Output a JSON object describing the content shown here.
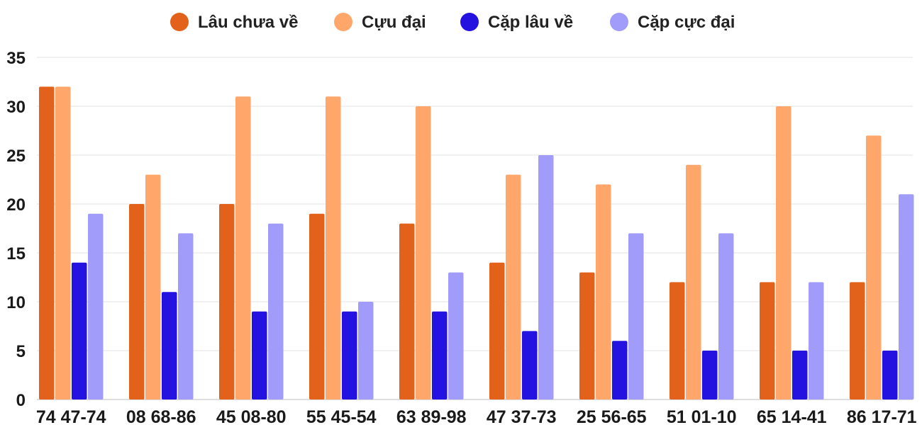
{
  "chart_data": {
    "type": "bar",
    "title": "",
    "xlabel": "",
    "ylabel": "",
    "ylim": [
      0,
      35
    ],
    "y_ticks": [
      "0",
      "5",
      "10",
      "15",
      "20",
      "25",
      "30",
      "35"
    ],
    "grid": true,
    "legend_position": "top-center",
    "categories": [
      "74 47-74",
      "08 68-86",
      "45 08-80",
      "55 45-54",
      "63 89-98",
      "47 37-73",
      "25 56-65",
      "51 01-10",
      "65 14-41",
      "86 17-71"
    ],
    "series": [
      {
        "name": "Lâu chưa về",
        "color": "#e2621b",
        "values": [
          32,
          20,
          20,
          19,
          18,
          14,
          13,
          12,
          12,
          12
        ]
      },
      {
        "name": "Cựu đại",
        "color": "#ffa66b",
        "values": [
          32,
          23,
          31,
          31,
          30,
          23,
          22,
          24,
          30,
          27
        ]
      },
      {
        "name": "Cặp lâu về",
        "color": "#2412e0",
        "values": [
          14,
          11,
          9,
          9,
          9,
          7,
          6,
          5,
          5,
          5
        ]
      },
      {
        "name": "Cặp cực đại",
        "color": "#a19cfa",
        "values": [
          19,
          17,
          18,
          10,
          13,
          25,
          17,
          17,
          12,
          21
        ]
      }
    ]
  }
}
